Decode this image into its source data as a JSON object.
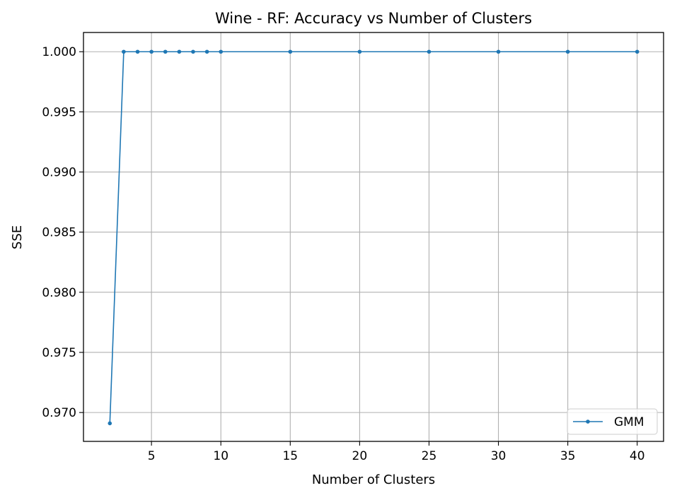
{
  "chart_data": {
    "type": "line",
    "title": "Wine - RF: Accuracy vs Number of Clusters",
    "xlabel": "Number of Clusters",
    "ylabel": "SSE",
    "xlim": [
      0.1,
      41.9
    ],
    "ylim": [
      0.9676,
      1.0016
    ],
    "xticks": [
      5,
      10,
      15,
      20,
      25,
      30,
      35,
      40
    ],
    "xtick_labels": [
      "5",
      "10",
      "15",
      "20",
      "25",
      "30",
      "35",
      "40"
    ],
    "yticks": [
      0.97,
      0.975,
      0.98,
      0.985,
      0.99,
      0.995,
      1.0
    ],
    "ytick_labels": [
      "0.970",
      "0.975",
      "0.980",
      "0.985",
      "0.990",
      "0.995",
      "1.000"
    ],
    "grid": true,
    "legend_position": "lower-right",
    "series": [
      {
        "name": "GMM",
        "color": "#1f77b4",
        "marker": "circle",
        "x": [
          2,
          3,
          4,
          5,
          6,
          7,
          8,
          9,
          10,
          15,
          20,
          25,
          30,
          35,
          40
        ],
        "y": [
          0.9691,
          1.0,
          1.0,
          1.0,
          1.0,
          1.0,
          1.0,
          1.0,
          1.0,
          1.0,
          1.0,
          1.0,
          1.0,
          1.0,
          1.0
        ]
      }
    ]
  }
}
